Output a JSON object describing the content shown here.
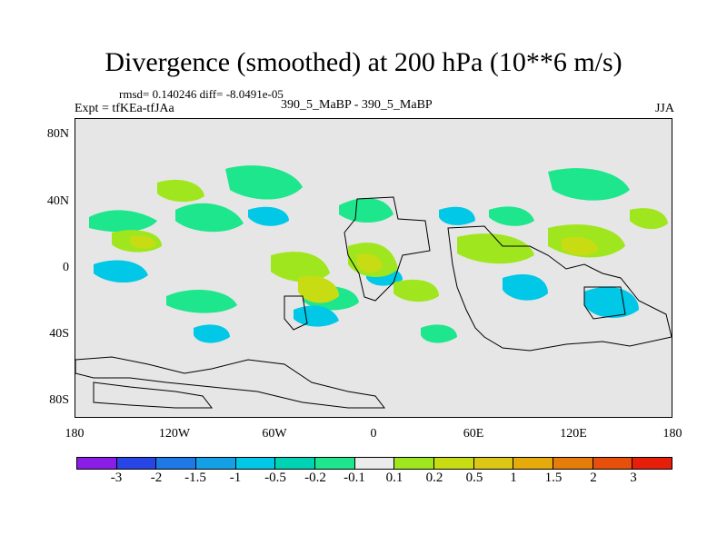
{
  "title": "Divergence (smoothed) at 200 hPa (10**6 m/s)",
  "rmsd_text": "rmsd= 0.140246 diff= -8.0491e-05",
  "expt_text": "Expt = tfKEa-tfJAa",
  "center_text": "390_5_MaBP - 390_5_MaBP",
  "season": "JJA",
  "y_ticks": [
    "80N",
    "40N",
    "0",
    "40S",
    "80S"
  ],
  "x_ticks": [
    "180",
    "120W",
    "60W",
    "0",
    "60E",
    "120E",
    "180"
  ],
  "colorbar": {
    "colors": [
      "#8b1ee6",
      "#2846e6",
      "#1e78e6",
      "#14a0e6",
      "#00c8e6",
      "#00d2b4",
      "#1ee68c",
      "#ebebeb",
      "#a0e61e",
      "#c8dc14",
      "#dcc814",
      "#e6aa0a",
      "#e67d0a",
      "#e6500a",
      "#e61e0a"
    ],
    "labels": [
      "-3",
      "-2",
      "-1.5",
      "-1",
      "-0.5",
      "-0.2",
      "-0.1",
      "0.1",
      "0.2",
      "0.5",
      "1",
      "1.5",
      "2",
      "3"
    ]
  },
  "field_colors": {
    "neg_light": "#1ee68c",
    "neg_mid": "#00c8e6",
    "pos_light": "#a0e61e",
    "pos_mid": "#c8dc14"
  }
}
